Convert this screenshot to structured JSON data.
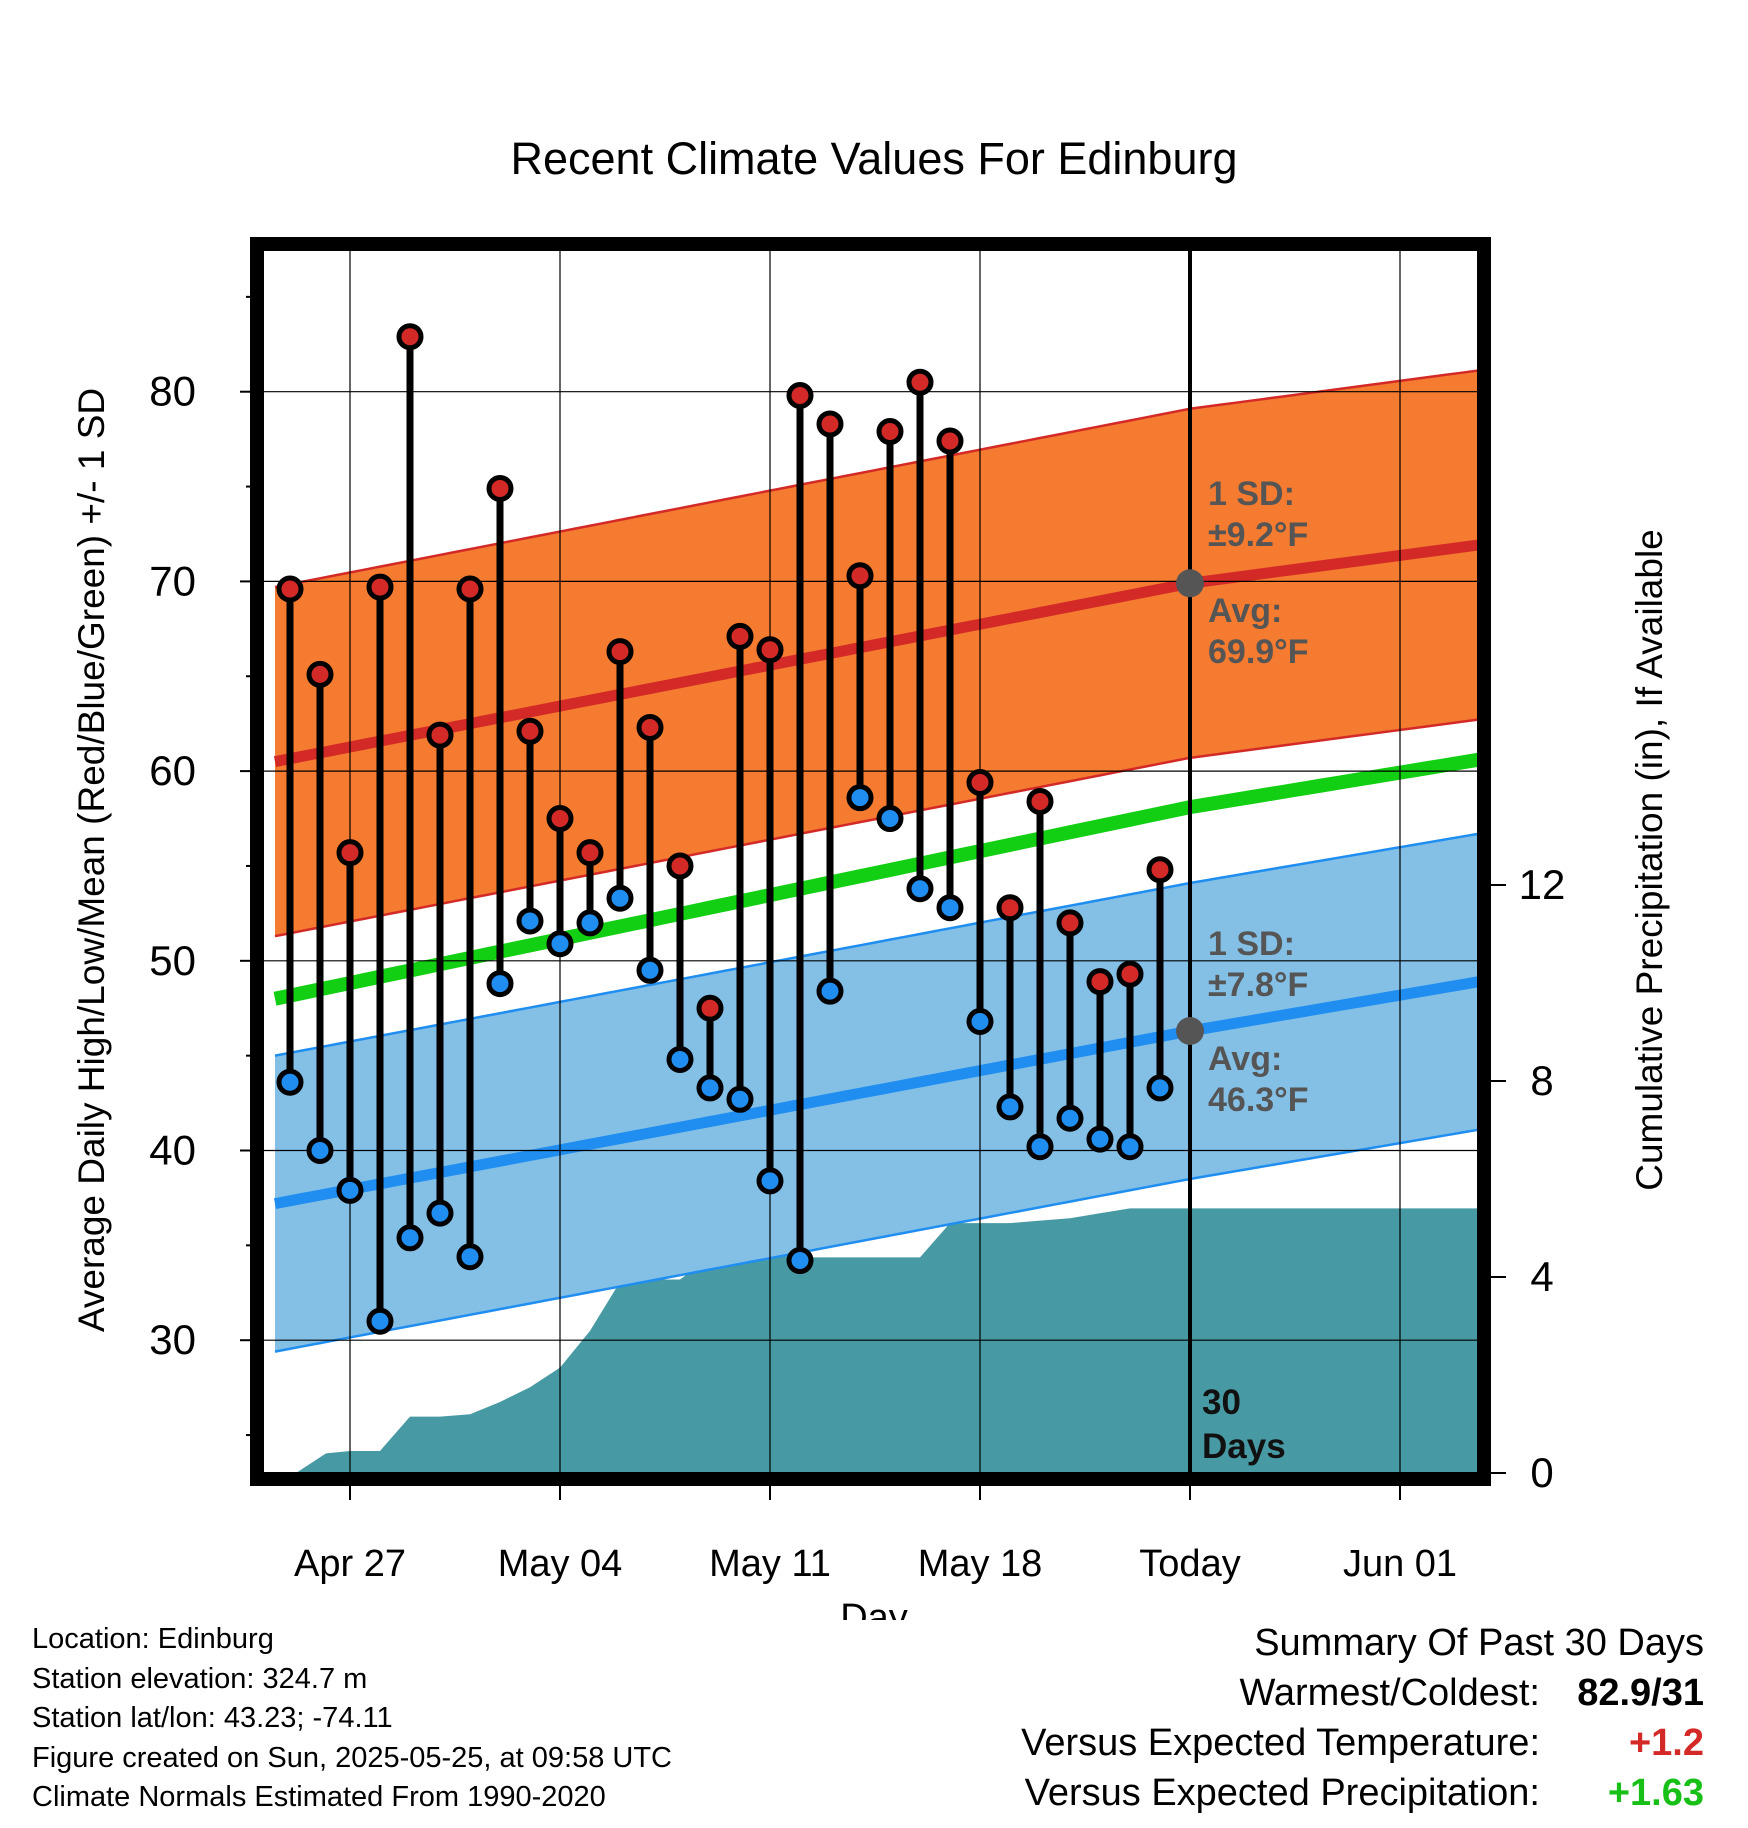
{
  "title": "Recent Climate Values For Edinburg",
  "chart_data": {
    "type": "line",
    "title": "Recent Climate Values For Edinburg",
    "xlabel": "Day",
    "ylabel_left": "Average Daily High/Low/Mean (Red/Blue/Green) +/- 1 SD",
    "ylabel_right": "Cumulative Precipitation (in), If Available",
    "x_tick_labels": [
      "Apr 27",
      "May 04",
      "May 11",
      "May 18",
      "Today",
      "Jun 01"
    ],
    "y_left_ticks": [
      30,
      40,
      50,
      60,
      70,
      80
    ],
    "y_left_range": [
      23,
      88
    ],
    "y_right_ticks": [
      0,
      4,
      8,
      12
    ],
    "y_right_range": [
      0,
      25
    ],
    "x_day_range": [
      -30.5,
      10
    ],
    "days": [
      -30,
      -29,
      -28,
      -27,
      -26,
      -25,
      -24,
      -23,
      -22,
      -21,
      -20,
      -19,
      -18,
      -17,
      -16,
      -15,
      -14,
      -13,
      -12,
      -11,
      -10,
      -9,
      -8,
      -7,
      -6,
      -5,
      -4,
      -3,
      -2,
      -1
    ],
    "series": [
      {
        "name": "Daily High",
        "color": "#d42a27",
        "values": [
          69.6,
          65.1,
          55.7,
          69.7,
          82.9,
          61.9,
          69.6,
          74.9,
          62.1,
          57.5,
          55.7,
          66.3,
          62.3,
          55.0,
          47.5,
          67.1,
          66.4,
          79.8,
          78.3,
          70.3,
          77.9,
          80.5,
          77.4,
          59.4,
          52.8,
          58.4,
          52.0,
          48.9,
          49.3,
          54.8
        ]
      },
      {
        "name": "Daily Low",
        "color": "#1f8ef0",
        "values": [
          43.6,
          40.0,
          37.9,
          31.0,
          35.4,
          36.7,
          34.4,
          48.8,
          52.1,
          50.9,
          52.0,
          53.3,
          49.5,
          44.8,
          43.3,
          42.7,
          38.4,
          34.2,
          48.4,
          58.6,
          57.5,
          53.8,
          52.8,
          46.8,
          42.3,
          40.2,
          41.7,
          40.6,
          40.2,
          43.3
        ]
      },
      {
        "name": "Normal High",
        "color": "#d42a27",
        "values_at_day": [
          {
            "day": -30.5,
            "value": 60.5
          },
          {
            "day": 0,
            "value": 69.9
          },
          {
            "day": 10,
            "value": 72.0
          }
        ],
        "sd": 9.2
      },
      {
        "name": "Normal Low",
        "color": "#1f8ef0",
        "values_at_day": [
          {
            "day": -30.5,
            "value": 37.2
          },
          {
            "day": 0,
            "value": 46.3
          },
          {
            "day": 10,
            "value": 49.0
          }
        ],
        "sd": 7.8
      },
      {
        "name": "Normal Mean",
        "color": "#13cf13",
        "values_at_day": [
          {
            "day": -30.5,
            "value": 48.0
          },
          {
            "day": 0,
            "value": 58.1
          },
          {
            "day": 10,
            "value": 60.7
          }
        ]
      },
      {
        "name": "Cumulative Precipitation",
        "color": "#479aa3",
        "points": [
          {
            "day": -30.5,
            "value": 0.0
          },
          {
            "day": -29.8,
            "value": 0.0
          },
          {
            "day": -28.8,
            "value": 0.4
          },
          {
            "day": -28.0,
            "value": 0.45
          },
          {
            "day": -27.0,
            "value": 0.45
          },
          {
            "day": -26.0,
            "value": 1.15
          },
          {
            "day": -25.0,
            "value": 1.15
          },
          {
            "day": -24.0,
            "value": 1.2
          },
          {
            "day": -23.0,
            "value": 1.45
          },
          {
            "day": -22.0,
            "value": 1.75
          },
          {
            "day": -21.0,
            "value": 2.15
          },
          {
            "day": -20.0,
            "value": 2.9
          },
          {
            "day": -19.0,
            "value": 3.9
          },
          {
            "day": -18.0,
            "value": 3.95
          },
          {
            "day": -17.0,
            "value": 3.95
          },
          {
            "day": -16.0,
            "value": 4.4
          },
          {
            "day": -15.0,
            "value": 4.45
          },
          {
            "day": -14.0,
            "value": 4.45
          },
          {
            "day": -13.0,
            "value": 4.4
          },
          {
            "day": -12.0,
            "value": 4.4
          },
          {
            "day": -11.0,
            "value": 4.4
          },
          {
            "day": -10.0,
            "value": 4.4
          },
          {
            "day": -9.0,
            "value": 4.4
          },
          {
            "day": -8.0,
            "value": 5.1
          },
          {
            "day": -7.0,
            "value": 5.1
          },
          {
            "day": -6.0,
            "value": 5.1
          },
          {
            "day": -5.0,
            "value": 5.15
          },
          {
            "day": -4.0,
            "value": 5.2
          },
          {
            "day": -3.0,
            "value": 5.3
          },
          {
            "day": -2.0,
            "value": 5.4
          },
          {
            "day": -1.0,
            "value": 5.4
          },
          {
            "day": 0.0,
            "value": 5.4
          },
          {
            "day": 10.0,
            "value": 5.4
          }
        ]
      }
    ],
    "annotations": {
      "high_sd": "1 SD:",
      "high_sd_value": "±9.2°F",
      "high_avg": "Avg:",
      "high_avg_value": "69.9°F",
      "low_sd": "1 SD:",
      "low_sd_value": "±7.8°F",
      "low_avg": "Avg:",
      "low_avg_value": "46.3°F",
      "window_count": "30",
      "window_unit": "Days"
    },
    "grid": true
  },
  "info": {
    "location": "Location: Edinburg",
    "elevation": "Station elevation: 324.7 m",
    "latlon": "Station lat/lon: 43.23; -74.11",
    "created": "Figure created on Sun, 2025-05-25, at 09:58 UTC",
    "normals": "Climate Normals Estimated From 1990-2020"
  },
  "summary": {
    "heading": "Summary Of Past 30 Days",
    "warm_cold_label": "Warmest/Coldest:",
    "warm_cold_value": "82.9/31",
    "temp_label": "Versus Expected Temperature:",
    "temp_value": "+1.2",
    "temp_color": "#d42a27",
    "precip_label": "Versus Expected Precipitation:",
    "precip_value": "+1.63",
    "precip_color": "#17bf17"
  }
}
